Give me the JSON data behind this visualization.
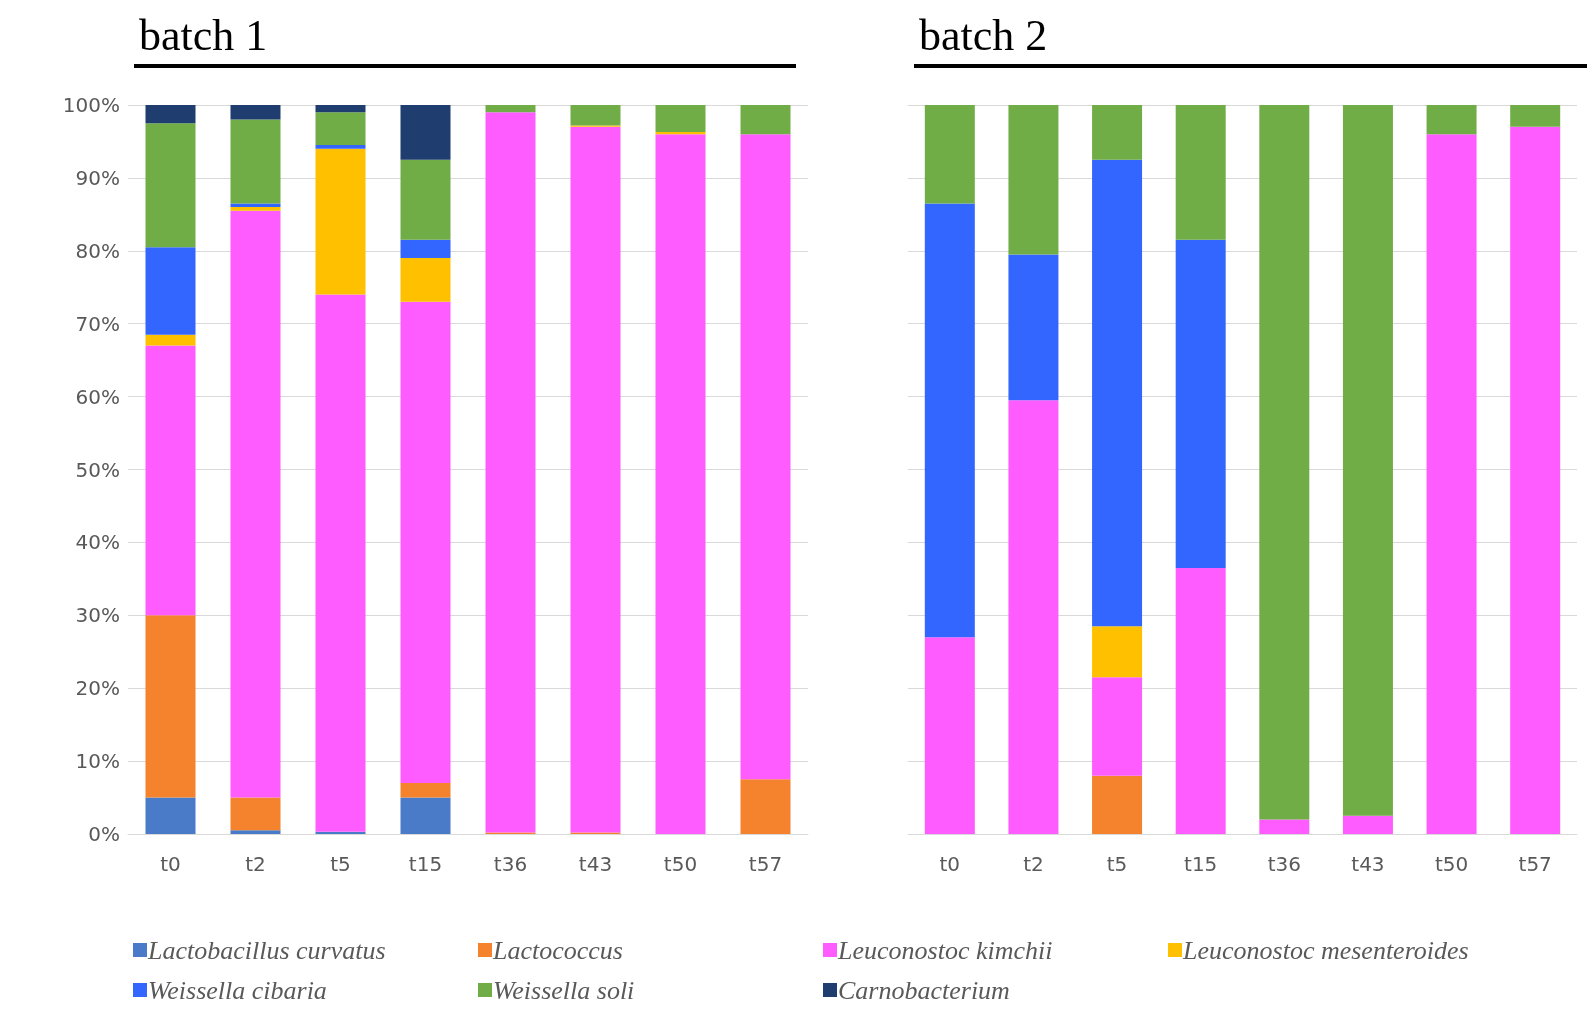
{
  "chart_data": [
    {
      "type": "bar",
      "title": "batch 1",
      "stacked": true,
      "grid": "y",
      "legend": "bottom",
      "categories": [
        "t0",
        "t2",
        "t5",
        "t15",
        "t36",
        "t43",
        "t50",
        "t57"
      ],
      "ylim": [
        0,
        100
      ],
      "yticks": [
        {
          "value": 0,
          "label": "0%"
        },
        {
          "value": 10,
          "label": "10%"
        },
        {
          "value": 20,
          "label": "20%"
        },
        {
          "value": 30,
          "label": "30%"
        },
        {
          "value": 40,
          "label": "40%"
        },
        {
          "value": 50,
          "label": "50%"
        },
        {
          "value": 60,
          "label": "60%"
        },
        {
          "value": 70,
          "label": "70%"
        },
        {
          "value": 80,
          "label": "80%"
        },
        {
          "value": 90,
          "label": "90%"
        },
        {
          "value": 100,
          "label": "100%"
        }
      ],
      "series": [
        {
          "name": "Lactobacillus curvatus",
          "color": "#4a7bc8",
          "values": [
            5,
            0.5,
            0.3,
            5,
            0,
            0,
            0,
            0
          ]
        },
        {
          "name": "Lactococcus",
          "color": "#f5822d",
          "values": [
            25,
            4.5,
            0,
            2,
            0.2,
            0.2,
            0,
            7.5
          ]
        },
        {
          "name": "Leuconostoc kimchii",
          "color": "#ff5cff",
          "values": [
            37,
            80.5,
            73.7,
            66,
            98.8,
            96.8,
            96,
            88.5
          ]
        },
        {
          "name": "Leuconostoc mesenteroides",
          "color": "#ffc000",
          "values": [
            1.5,
            0.5,
            20,
            6,
            0,
            0.2,
            0.3,
            0
          ]
        },
        {
          "name": "Weissella cibaria",
          "color": "#3366ff",
          "values": [
            12,
            0.5,
            0.5,
            2.5,
            0,
            0,
            0,
            0
          ]
        },
        {
          "name": "Weissella soli",
          "color": "#70ad47",
          "values": [
            17,
            11.5,
            4.5,
            11,
            1,
            2.8,
            3.7,
            4
          ]
        },
        {
          "name": "Carnobacterium",
          "color": "#1f3d6e",
          "values": [
            2.5,
            2,
            1,
            7.5,
            0,
            0,
            0,
            0
          ]
        }
      ]
    },
    {
      "type": "bar",
      "title": "batch 2",
      "stacked": true,
      "grid": "y",
      "tick_labels": "x",
      "categories": [
        "t0",
        "t2",
        "t5",
        "t15",
        "t36",
        "t43",
        "t50",
        "t57"
      ],
      "ylim": [
        0,
        100
      ],
      "yticks": [
        0,
        10,
        20,
        30,
        40,
        50,
        60,
        70,
        80,
        90,
        100
      ],
      "series": [
        {
          "color": "#4a7bc8",
          "values": [
            0,
            0,
            0,
            0,
            0,
            0,
            0,
            0
          ]
        },
        {
          "color": "#f5822d",
          "values": [
            0,
            0,
            8,
            0,
            0,
            0,
            0,
            0
          ]
        },
        {
          "color": "#ff5cff",
          "values": [
            27,
            59.5,
            13.5,
            36.5,
            2,
            2.5,
            96,
            97
          ]
        },
        {
          "color": "#ffc000",
          "values": [
            0,
            0,
            7,
            0,
            0,
            0,
            0,
            0
          ]
        },
        {
          "color": "#3366ff",
          "values": [
            59.5,
            20,
            64,
            45,
            0,
            0,
            0,
            0
          ]
        },
        {
          "color": "#70ad47",
          "values": [
            13.5,
            20.5,
            7.5,
            18.5,
            98,
            97.5,
            4,
            3
          ]
        },
        {
          "color": "#1f3d6e",
          "values": [
            0,
            0,
            0,
            0,
            0,
            0,
            0,
            0
          ]
        }
      ]
    }
  ]
}
